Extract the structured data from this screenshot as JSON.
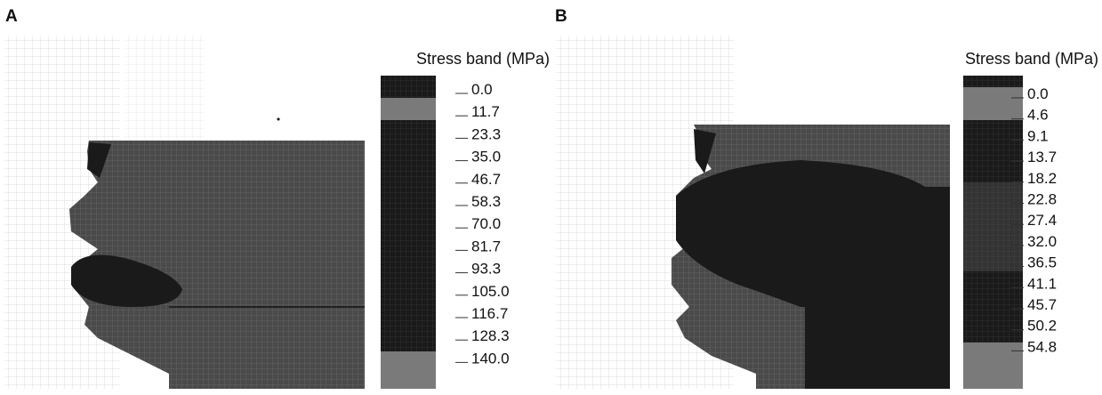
{
  "panels": [
    {
      "label": "A",
      "legend_title": "Stress band (MPa)",
      "legend_values": [
        "0.0",
        "11.7",
        "23.3",
        "35.0",
        "46.7",
        "58.3",
        "70.0",
        "81.7",
        "93.3",
        "105.0",
        "116.7",
        "128.3",
        "140.0"
      ]
    },
    {
      "label": "B",
      "legend_title": "Stress band (MPa)",
      "legend_values": [
        "0.0",
        "4.6",
        "9.1",
        "13.7",
        "18.2",
        "22.8",
        "27.4",
        "32.0",
        "36.5",
        "41.1",
        "45.7",
        "50.2",
        "54.8"
      ]
    }
  ]
}
